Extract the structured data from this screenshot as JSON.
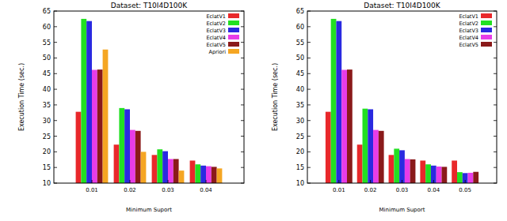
{
  "chart_data": [
    {
      "type": "bar",
      "title": "Dataset: T10I4D100K",
      "x_label": "Minimum Suport",
      "y_label": "Execution Time (sec.)",
      "categories": [
        "0.01",
        "0.02",
        "0.03",
        "0.04"
      ],
      "series": [
        {
          "name": "EclatV1",
          "color": "#e8282b",
          "values": [
            32.8,
            22.3,
            19,
            17.2
          ]
        },
        {
          "name": "EclatV2",
          "color": "#22e022",
          "values": [
            62.5,
            34,
            20.8,
            16
          ]
        },
        {
          "name": "EclatV3",
          "color": "#2a2ae0",
          "values": [
            61.8,
            33.6,
            20.2,
            15.6
          ]
        },
        {
          "name": "EclatV4",
          "color": "#e83ce8",
          "values": [
            46.2,
            27,
            17.7,
            15.4
          ]
        },
        {
          "name": "EclatV5",
          "color": "#8a1a1a",
          "values": [
            46.3,
            26.7,
            17.7,
            15.2
          ]
        },
        {
          "name": "Apriori",
          "color": "#f5a623",
          "values": [
            52.7,
            20,
            14,
            14.7
          ]
        }
      ],
      "ylim": [
        10,
        65
      ],
      "yticks": [
        10,
        15,
        20,
        25,
        30,
        35,
        40,
        45,
        50,
        55,
        60,
        65
      ],
      "grid": false,
      "legend": "top-right"
    },
    {
      "type": "bar",
      "title": "Dataset: T10I4D100K",
      "x_label": "Minimum Suport",
      "y_label": "Execution Time (sec.)",
      "categories": [
        "0.01",
        "0.02",
        "0.03",
        "0.04",
        "0.05"
      ],
      "series": [
        {
          "name": "EclatV1",
          "color": "#e8282b",
          "values": [
            32.8,
            22.3,
            19,
            17.2,
            17.2
          ]
        },
        {
          "name": "EclatV2",
          "color": "#22e022",
          "values": [
            62.5,
            33.8,
            21,
            16,
            13.5
          ]
        },
        {
          "name": "EclatV3",
          "color": "#2a2ae0",
          "values": [
            61.8,
            33.6,
            20.5,
            15.6,
            13.2
          ]
        },
        {
          "name": "EclatV4",
          "color": "#e83ce8",
          "values": [
            46.2,
            27,
            17.7,
            15.3,
            13.3
          ]
        },
        {
          "name": "EclatV5",
          "color": "#8a1a1a",
          "values": [
            46.3,
            26.7,
            17.6,
            15.2,
            13.6
          ]
        }
      ],
      "ylim": [
        10,
        65
      ],
      "yticks": [
        10,
        15,
        20,
        25,
        30,
        35,
        40,
        45,
        50,
        55,
        60,
        65
      ],
      "grid": false,
      "legend": "top-right"
    }
  ]
}
